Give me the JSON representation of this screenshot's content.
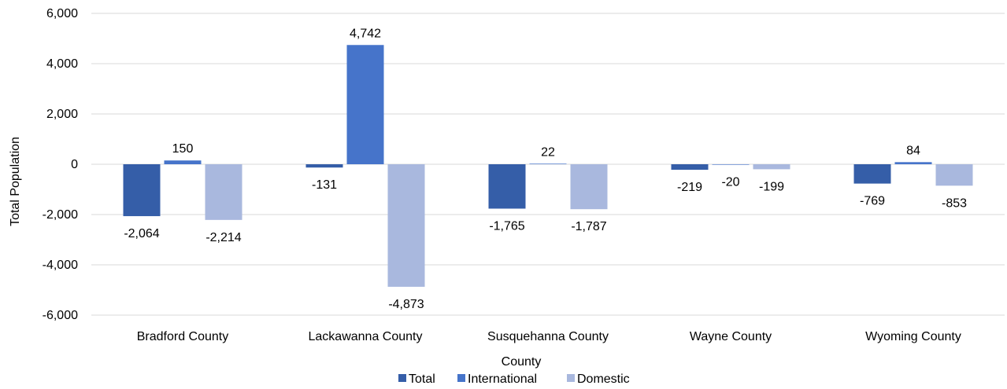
{
  "chart_data": {
    "type": "bar",
    "xlabel": "County",
    "ylabel": "Total Population",
    "ylim": [
      -6000,
      6000
    ],
    "yticks": [
      6000,
      4000,
      2000,
      0,
      -2000,
      -4000,
      -6000
    ],
    "ytick_labels": [
      "6,000",
      "4,000",
      "2,000",
      "0",
      "-2,000",
      "-4,000",
      "-6,000"
    ],
    "categories": [
      "Bradford County",
      "Lackawanna County",
      "Susquehanna County",
      "Wayne County",
      "Wyoming County"
    ],
    "series": [
      {
        "name": "Total",
        "color": "#355EA8",
        "values": [
          -2064,
          -131,
          -1765,
          -219,
          -769
        ],
        "labels": [
          "-2,064",
          "-131",
          "-1,765",
          "-219",
          "-769"
        ]
      },
      {
        "name": "International",
        "color": "#4674CA",
        "values": [
          150,
          4742,
          22,
          -20,
          84
        ],
        "labels": [
          "150",
          "4,742",
          "22",
          "-20",
          "84"
        ]
      },
      {
        "name": "Domestic",
        "color": "#A9B8DE",
        "values": [
          -2214,
          -4873,
          -1787,
          -199,
          -853
        ],
        "labels": [
          "-2,214",
          "-4,873",
          "-1,787",
          "-199",
          "-853"
        ]
      }
    ],
    "grid": true,
    "legend": "bottom"
  }
}
